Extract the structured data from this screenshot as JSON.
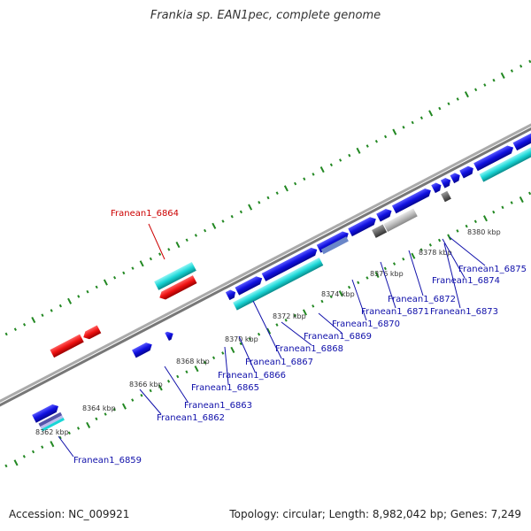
{
  "title": "Frankia sp. EAN1pec, complete genome",
  "accession": "Accession: NC_009921",
  "stats": "Topology: circular; Length: 8,982,042 bp; Genes: 7,249",
  "colors": {
    "forward_cds": "#1010e0",
    "reverse_cds": "#ee1111",
    "rna": "#1ad6d6",
    "pseudo": "#888888",
    "backbone": "#999999",
    "ticks": "#228822",
    "forward_label": "#1010aa",
    "reverse_label": "#cc0000"
  },
  "kbp_ticks": [
    {
      "text": "8362 kbp"
    },
    {
      "text": "8364 kbp"
    },
    {
      "text": "8366 kbp"
    },
    {
      "text": "8368 kbp"
    },
    {
      "text": "8370 kbp"
    },
    {
      "text": "8372 kbp"
    },
    {
      "text": "8374 kbp"
    },
    {
      "text": "8376 kbp"
    },
    {
      "text": "8378 kbp"
    },
    {
      "text": "8380 kbp"
    }
  ],
  "gene_labels": [
    {
      "text": "Franean1_6859",
      "strand": "forward"
    },
    {
      "text": "Franean1_6862",
      "strand": "forward"
    },
    {
      "text": "Franean1_6863",
      "strand": "forward"
    },
    {
      "text": "Franean1_6864",
      "strand": "reverse"
    },
    {
      "text": "Franean1_6865",
      "strand": "forward"
    },
    {
      "text": "Franean1_6866",
      "strand": "forward"
    },
    {
      "text": "Franean1_6867",
      "strand": "forward"
    },
    {
      "text": "Franean1_6868",
      "strand": "forward"
    },
    {
      "text": "Franean1_6869",
      "strand": "forward"
    },
    {
      "text": "Franean1_6870",
      "strand": "forward"
    },
    {
      "text": "Franean1_6871",
      "strand": "forward"
    },
    {
      "text": "Franean1_6872",
      "strand": "forward"
    },
    {
      "text": "Franean1_6873",
      "strand": "forward"
    },
    {
      "text": "Franean1_6874",
      "strand": "forward"
    },
    {
      "text": "Franean1_6875",
      "strand": "forward"
    }
  ]
}
